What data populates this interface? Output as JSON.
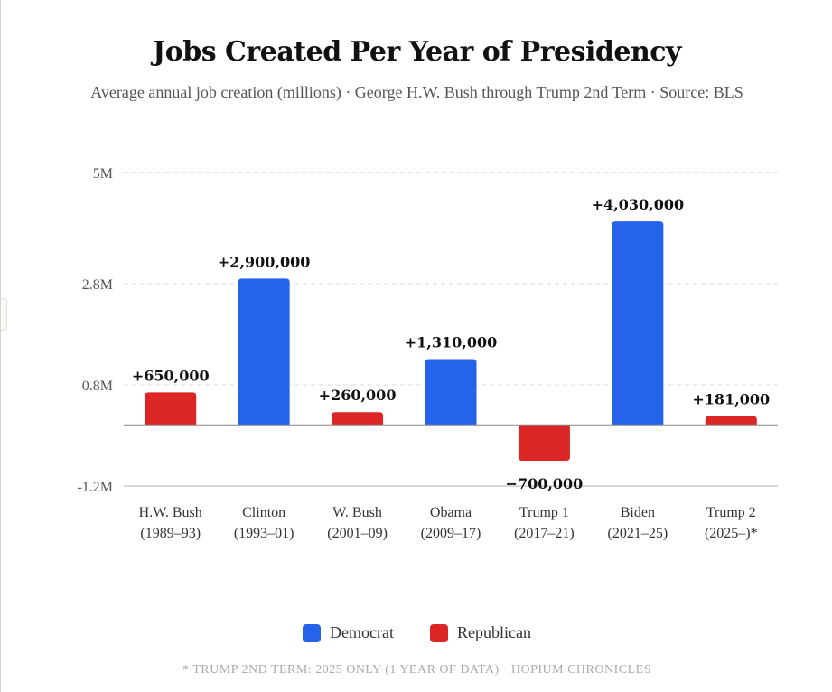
{
  "chart_data": {
    "type": "bar",
    "title": "Jobs Created Per Year of Presidency",
    "subtitle": "Average annual job creation (millions) · George H.W. Bush through Trump 2nd Term · Source: BLS",
    "categories": [
      {
        "name": "H.W. Bush",
        "years": "(1989–93)"
      },
      {
        "name": "Clinton",
        "years": "(1993–01)"
      },
      {
        "name": "W. Bush",
        "years": "(2001–09)"
      },
      {
        "name": "Obama",
        "years": "(2009–17)"
      },
      {
        "name": "Trump 1",
        "years": "(2017–21)"
      },
      {
        "name": "Biden",
        "years": "(2021–25)"
      },
      {
        "name": "Trump 2",
        "years": "(2025–)*"
      }
    ],
    "values": [
      650000,
      2900000,
      260000,
      1310000,
      -700000,
      4030000,
      181000
    ],
    "labels": [
      "+650,000",
      "+2,900,000",
      "+260,000",
      "+1,310,000",
      "−700,000",
      "+4,030,000",
      "+181,000"
    ],
    "party": [
      "Republican",
      "Democrat",
      "Republican",
      "Democrat",
      "Republican",
      "Democrat",
      "Republican"
    ],
    "yticks": [
      {
        "value": 5,
        "label": "5M"
      },
      {
        "value": 2.8,
        "label": "2.8M"
      },
      {
        "value": 0.8,
        "label": "0.8M"
      },
      {
        "value": -1.2,
        "label": "-1.2M"
      }
    ],
    "ylim": [
      -1.2,
      5
    ],
    "grid": true,
    "legend": {
      "placement": "bottom",
      "items": [
        {
          "label": "Democrat",
          "color": "#2563eb"
        },
        {
          "label": "Republican",
          "color": "#dc2626"
        }
      ]
    },
    "colors": {
      "Democrat": "#2563eb",
      "Republican": "#dc2626"
    }
  },
  "footnote": "* TRUMP 2ND TERM: 2025 ONLY (1 YEAR OF DATA) · HOPIUM CHRONICLES"
}
